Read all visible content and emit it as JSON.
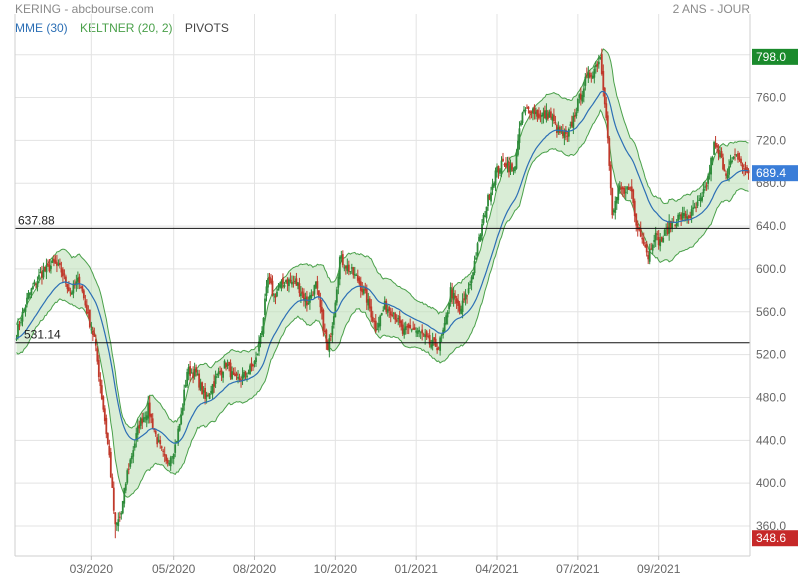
{
  "header": {
    "title": "KERING - abcbourse.com",
    "period": "2 ANS - JOUR"
  },
  "legend": [
    {
      "label": "MME (30)",
      "color": "#2c6fb5"
    },
    {
      "label": "KELTNER (20, 2)",
      "color": "#4aa04a"
    },
    {
      "label": "PIVOTS",
      "color": "#444444"
    }
  ],
  "colors": {
    "up": "#2e8b3a",
    "down": "#c0392b",
    "mme": "#2c6fb5",
    "band_fill": "#b9dfb4",
    "band_stroke": "#4aa04a",
    "grid": "#e3e3e3",
    "high_badge": "#1a8a2c",
    "low_badge": "#c62828",
    "last_badge": "#3a7dd8"
  },
  "chart_data": {
    "type": "candlestick",
    "y_axis": {
      "ticks": [
        360,
        400,
        440,
        480,
        520,
        560,
        600,
        640,
        680,
        720,
        760,
        800
      ],
      "tick_labels": [
        "360.0",
        "400.0",
        "440.0",
        "480.0",
        "520.0",
        "560.0",
        "600.0",
        "640.0",
        "680.0",
        "720.0",
        "760.0",
        "800.0"
      ],
      "ylim": [
        332,
        810
      ],
      "position": "right"
    },
    "x_axis": {
      "labels": [
        "03/2020",
        "05/2020",
        "08/2020",
        "10/2020",
        "01/2021",
        "04/2021",
        "07/2021",
        "09/2021"
      ],
      "label_index": [
        50,
        105,
        159,
        213,
        267,
        321,
        375,
        429
      ]
    },
    "n_sessions": 490,
    "series": [
      {
        "name": "MME (30)",
        "kind": "ema",
        "period": 30
      },
      {
        "name": "KELTNER (20, 2)",
        "kind": "keltner",
        "period": 20,
        "mult": 2
      }
    ],
    "pivot_levels": [
      {
        "value": 637.88,
        "label": "637.88"
      },
      {
        "value": 531.14,
        "label": "531.14"
      }
    ],
    "badges": {
      "high": {
        "value": 798.0,
        "label": "798.0"
      },
      "low": {
        "value": 348.6,
        "label": "348.6"
      },
      "last": {
        "value": 689.4,
        "label": "689.4"
      }
    },
    "close_anchors": [
      [
        0,
        540
      ],
      [
        8,
        575
      ],
      [
        16,
        595
      ],
      [
        25,
        605
      ],
      [
        30,
        598
      ],
      [
        36,
        578
      ],
      [
        42,
        590
      ],
      [
        48,
        555
      ],
      [
        52,
        535
      ],
      [
        58,
        470
      ],
      [
        62,
        425
      ],
      [
        66,
        358
      ],
      [
        70,
        372
      ],
      [
        74,
        410
      ],
      [
        82,
        455
      ],
      [
        88,
        470
      ],
      [
        94,
        440
      ],
      [
        100,
        418
      ],
      [
        106,
        435
      ],
      [
        110,
        462
      ],
      [
        114,
        505
      ],
      [
        120,
        502
      ],
      [
        126,
        478
      ],
      [
        134,
        500
      ],
      [
        140,
        512
      ],
      [
        146,
        495
      ],
      [
        152,
        500
      ],
      [
        156,
        506
      ],
      [
        160,
        515
      ],
      [
        164,
        545
      ],
      [
        168,
        590
      ],
      [
        172,
        575
      ],
      [
        180,
        590
      ],
      [
        188,
        585
      ],
      [
        194,
        568
      ],
      [
        200,
        585
      ],
      [
        204,
        555
      ],
      [
        208,
        522
      ],
      [
        212,
        560
      ],
      [
        216,
        610
      ],
      [
        222,
        600
      ],
      [
        228,
        590
      ],
      [
        234,
        572
      ],
      [
        240,
        545
      ],
      [
        246,
        565
      ],
      [
        252,
        560
      ],
      [
        258,
        540
      ],
      [
        264,
        545
      ],
      [
        270,
        540
      ],
      [
        276,
        530
      ],
      [
        282,
        528
      ],
      [
        286,
        545
      ],
      [
        290,
        580
      ],
      [
        296,
        560
      ],
      [
        302,
        580
      ],
      [
        308,
        620
      ],
      [
        314,
        660
      ],
      [
        320,
        690
      ],
      [
        326,
        700
      ],
      [
        332,
        690
      ],
      [
        338,
        745
      ],
      [
        344,
        750
      ],
      [
        350,
        742
      ],
      [
        356,
        745
      ],
      [
        362,
        728
      ],
      [
        368,
        722
      ],
      [
        374,
        750
      ],
      [
        380,
        775
      ],
      [
        386,
        787
      ],
      [
        390,
        798
      ],
      [
        394,
        745
      ],
      [
        398,
        648
      ],
      [
        402,
        675
      ],
      [
        406,
        668
      ],
      [
        410,
        680
      ],
      [
        414,
        640
      ],
      [
        418,
        632
      ],
      [
        422,
        612
      ],
      [
        426,
        632
      ],
      [
        430,
        625
      ],
      [
        436,
        640
      ],
      [
        442,
        648
      ],
      [
        450,
        650
      ],
      [
        458,
        665
      ],
      [
        462,
        685
      ],
      [
        466,
        715
      ],
      [
        470,
        705
      ],
      [
        474,
        690
      ],
      [
        478,
        700
      ],
      [
        482,
        705
      ],
      [
        487,
        690
      ],
      [
        489,
        689.4
      ]
    ]
  }
}
